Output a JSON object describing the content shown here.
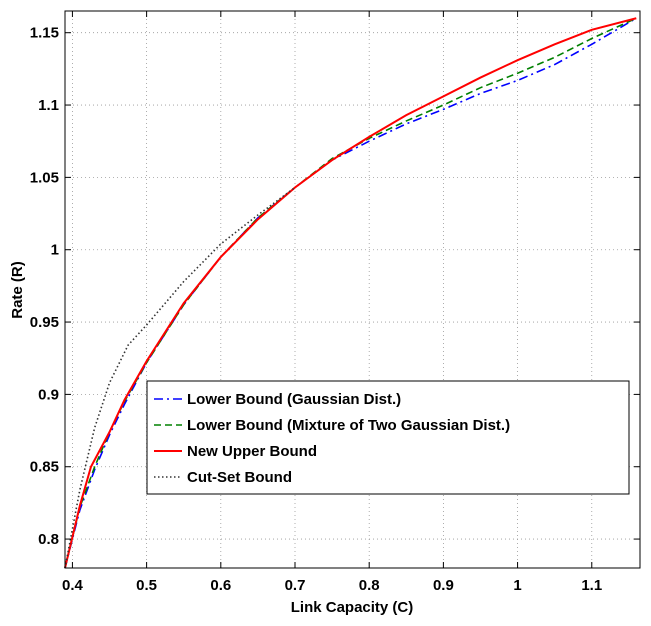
{
  "chart_data": {
    "type": "line",
    "xlabel": "Link Capacity (C)",
    "ylabel": "Rate (R)",
    "xlim": [
      0.39,
      1.165
    ],
    "ylim": [
      0.78,
      1.165
    ],
    "xticks": [
      0.4,
      0.5,
      0.6,
      0.7,
      0.8,
      0.9,
      1,
      1.1
    ],
    "xtick_labels": [
      "0.4",
      "0.5",
      "0.6",
      "0.7",
      "0.8",
      "0.9",
      "1",
      "1.1"
    ],
    "yticks": [
      0.8,
      0.85,
      0.9,
      0.95,
      1,
      1.05,
      1.1,
      1.15
    ],
    "ytick_labels": [
      "0.8",
      "0.85",
      "0.9",
      "0.95",
      "1",
      "1.05",
      "1.1",
      "1.15"
    ],
    "grid": true,
    "legend_position": "bottom-center",
    "series": [
      {
        "name": "Lower Bound (Gaussian Dist.)",
        "color": "#0000ff",
        "dash": "dash-dot",
        "x": [
          0.39,
          0.41,
          0.43,
          0.45,
          0.47,
          0.5,
          0.55,
          0.6,
          0.65,
          0.7,
          0.75,
          0.8,
          0.85,
          0.9,
          0.95,
          1.0,
          1.05,
          1.1,
          1.16
        ],
        "y": [
          0.78,
          0.82,
          0.848,
          0.872,
          0.893,
          0.922,
          0.962,
          0.995,
          1.022,
          1.043,
          1.062,
          1.075,
          1.087,
          1.097,
          1.108,
          1.117,
          1.128,
          1.142,
          1.16
        ]
      },
      {
        "name": "Lower Bound (Mixture of Two Gaussian Dist.)",
        "color": "#008000",
        "dash": "dashed",
        "x": [
          0.39,
          0.41,
          0.43,
          0.45,
          0.47,
          0.5,
          0.55,
          0.6,
          0.65,
          0.7,
          0.75,
          0.8,
          0.85,
          0.9,
          0.95,
          1.0,
          1.05,
          1.1,
          1.16
        ],
        "y": [
          0.78,
          0.822,
          0.85,
          0.874,
          0.895,
          0.922,
          0.962,
          0.995,
          1.022,
          1.043,
          1.063,
          1.077,
          1.089,
          1.1,
          1.112,
          1.122,
          1.133,
          1.146,
          1.16
        ]
      },
      {
        "name": "New Upper Bound",
        "color": "#ff0000",
        "dash": "solid",
        "x": [
          0.39,
          0.41,
          0.425,
          0.45,
          0.47,
          0.5,
          0.55,
          0.6,
          0.65,
          0.7,
          0.75,
          0.8,
          0.85,
          0.9,
          0.95,
          1.0,
          1.05,
          1.1,
          1.16
        ],
        "y": [
          0.78,
          0.823,
          0.85,
          0.874,
          0.896,
          0.923,
          0.963,
          0.995,
          1.021,
          1.043,
          1.062,
          1.078,
          1.093,
          1.106,
          1.119,
          1.131,
          1.142,
          1.152,
          1.16
        ]
      },
      {
        "name": "Cut-Set Bound",
        "color": "#333333",
        "dash": "dotted",
        "x": [
          0.39,
          0.41,
          0.43,
          0.45,
          0.475,
          0.5,
          0.55,
          0.6,
          0.65,
          0.7
        ],
        "y": [
          0.78,
          0.834,
          0.877,
          0.908,
          0.934,
          0.948,
          0.978,
          1.004,
          1.024,
          1.043
        ]
      }
    ]
  }
}
